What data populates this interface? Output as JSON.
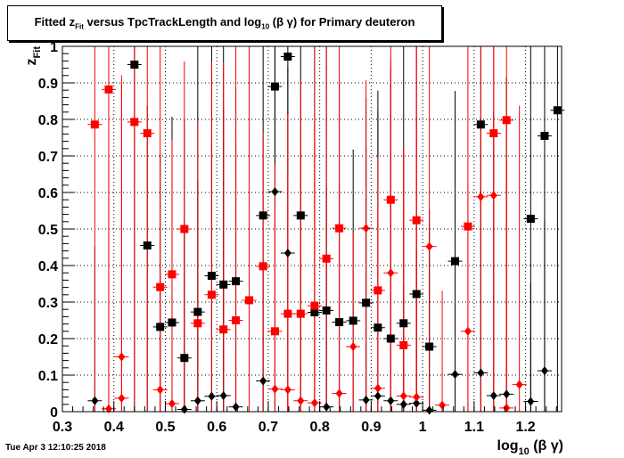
{
  "chart_data": {
    "type": "scatter",
    "title_parts": [
      "Fitted  z",
      "Fit",
      "  versus TpcTrackLength and log",
      "10",
      " (β γ) for Primary deuteron"
    ],
    "xlabel_parts": [
      "log",
      "10",
      " (β γ)"
    ],
    "ylabel_parts": [
      "z",
      "Fit"
    ],
    "xlim": [
      0.3,
      1.27
    ],
    "ylim": [
      0,
      1
    ],
    "x_ticks": [
      "0.3",
      "0.4",
      "0.5",
      "0.6",
      "0.7",
      "0.8",
      "0.9",
      "1",
      "1.1",
      "1.2"
    ],
    "y_ticks": [
      "0",
      "0.1",
      "0.2",
      "0.3",
      "0.4",
      "0.5",
      "0.6",
      "0.7",
      "0.8",
      "0.9",
      "1"
    ],
    "grid": true,
    "colors": {
      "black": "#000000",
      "red": "#ff0000"
    },
    "series": [
      {
        "color": "#000000",
        "marker": "square",
        "points": [
          [
            0.44,
            0.95
          ],
          [
            0.465,
            0.455
          ],
          [
            0.49,
            0.232
          ],
          [
            0.513,
            0.244
          ],
          [
            0.537,
            0.147
          ],
          [
            0.563,
            0.273
          ],
          [
            0.59,
            0.372
          ],
          [
            0.613,
            0.348
          ],
          [
            0.637,
            0.357
          ],
          [
            0.69,
            0.537
          ],
          [
            0.713,
            0.89
          ],
          [
            0.738,
            0.972
          ],
          [
            0.763,
            0.537
          ],
          [
            0.79,
            0.272
          ],
          [
            0.813,
            0.277
          ],
          [
            0.838,
            0.245
          ],
          [
            0.865,
            0.249
          ],
          [
            0.89,
            0.298
          ],
          [
            0.913,
            0.23
          ],
          [
            0.938,
            0.2
          ],
          [
            0.963,
            0.242
          ],
          [
            0.988,
            0.322
          ],
          [
            1.013,
            0.178
          ],
          [
            1.063,
            0.412
          ],
          [
            1.113,
            0.786
          ],
          [
            1.21,
            0.528
          ],
          [
            1.237,
            0.755
          ],
          [
            1.262,
            0.825
          ]
        ]
      },
      {
        "color": "#000000",
        "marker": "diamond",
        "points": [
          [
            0.363,
            0.03
          ],
          [
            0.537,
            0.006
          ],
          [
            0.563,
            0.03
          ],
          [
            0.59,
            0.042
          ],
          [
            0.613,
            0.044
          ],
          [
            0.637,
            0.013
          ],
          [
            0.69,
            0.084
          ],
          [
            0.713,
            0.602
          ],
          [
            0.738,
            0.434
          ],
          [
            0.813,
            0.013
          ],
          [
            0.89,
            0.032
          ],
          [
            0.913,
            0.043
          ],
          [
            0.938,
            0.03
          ],
          [
            0.963,
            0.02
          ],
          [
            0.988,
            0.023
          ],
          [
            1.013,
            0.004
          ],
          [
            1.063,
            0.102
          ],
          [
            1.113,
            0.106
          ],
          [
            1.138,
            0.044
          ],
          [
            1.163,
            0.048
          ],
          [
            1.21,
            0.028
          ],
          [
            1.237,
            0.112
          ]
        ]
      },
      {
        "color": "#ff0000",
        "marker": "square",
        "points": [
          [
            0.363,
            0.786
          ],
          [
            0.39,
            0.882
          ],
          [
            0.44,
            0.793
          ],
          [
            0.465,
            0.762
          ],
          [
            0.49,
            0.341
          ],
          [
            0.513,
            0.376
          ],
          [
            0.537,
            0.5
          ],
          [
            0.563,
            0.242
          ],
          [
            0.59,
            0.32
          ],
          [
            0.613,
            0.225
          ],
          [
            0.637,
            0.25
          ],
          [
            0.663,
            0.305
          ],
          [
            0.69,
            0.398
          ],
          [
            0.713,
            0.22
          ],
          [
            0.738,
            0.268
          ],
          [
            0.763,
            0.268
          ],
          [
            0.79,
            0.29
          ],
          [
            0.813,
            0.419
          ],
          [
            0.838,
            0.502
          ],
          [
            0.913,
            0.332
          ],
          [
            0.938,
            0.58
          ],
          [
            0.963,
            0.182
          ],
          [
            0.988,
            0.524
          ],
          [
            1.088,
            0.507
          ],
          [
            1.138,
            0.762
          ],
          [
            1.163,
            0.798
          ]
        ]
      },
      {
        "color": "#ff0000",
        "marker": "diamond",
        "points": [
          [
            0.39,
            0.008
          ],
          [
            0.415,
            0.15
          ],
          [
            0.415,
            0.037
          ],
          [
            0.49,
            0.06
          ],
          [
            0.513,
            0.022
          ],
          [
            0.713,
            0.062
          ],
          [
            0.738,
            0.06
          ],
          [
            0.763,
            0.03
          ],
          [
            0.79,
            0.024
          ],
          [
            0.838,
            0.05
          ],
          [
            0.865,
            0.178
          ],
          [
            0.89,
            0.502
          ],
          [
            0.913,
            0.064
          ],
          [
            0.938,
            0.38
          ],
          [
            0.963,
            0.043
          ],
          [
            0.988,
            0.04
          ],
          [
            1.013,
            0.452
          ],
          [
            1.038,
            0.018
          ],
          [
            1.088,
            0.22
          ],
          [
            1.113,
            0.588
          ],
          [
            1.138,
            0.592
          ],
          [
            1.163,
            0.01
          ],
          [
            1.188,
            0.074
          ]
        ]
      }
    ],
    "timestamp": "Tue Apr  3 12:10:25 2018"
  }
}
